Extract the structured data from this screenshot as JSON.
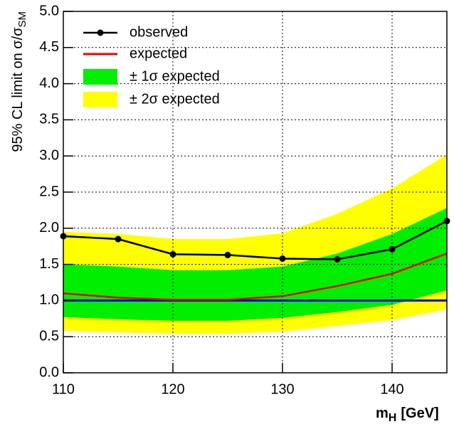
{
  "chart_data": {
    "type": "limit",
    "y_label": "95% CL limit on  σ/σ",
    "y_label_sub": "SM",
    "x_label": "m",
    "x_label_sub": "H",
    "x_label_unit": "[GeV]",
    "x": [
      110,
      115,
      120,
      125,
      130,
      135,
      140,
      145
    ],
    "xlim": [
      110,
      145
    ],
    "xticks": [
      110,
      120,
      130,
      140
    ],
    "ylim": [
      0,
      5
    ],
    "yticks": [
      {
        "value": 0,
        "label": "0.0"
      },
      {
        "value": 0.5,
        "label": "0.5"
      },
      {
        "value": 1,
        "label": "1.0"
      },
      {
        "value": 1.5,
        "label": "1.5"
      },
      {
        "value": 2,
        "label": "2.0"
      },
      {
        "value": 2.5,
        "label": "2.5"
      },
      {
        "value": 3,
        "label": "3.0"
      },
      {
        "value": 3.5,
        "label": "3.5"
      },
      {
        "value": 4,
        "label": "4.0"
      },
      {
        "value": 4.5,
        "label": "4.5"
      },
      {
        "value": 5,
        "label": "5.0"
      }
    ],
    "grid": true,
    "legend": "top-left",
    "bands": [
      {
        "name": "± 2σ expected",
        "color": "#ffff00",
        "lower": [
          0.58,
          0.56,
          0.54,
          0.54,
          0.57,
          0.65,
          0.73,
          0.88
        ],
        "upper": [
          1.95,
          1.92,
          1.85,
          1.85,
          1.93,
          2.2,
          2.55,
          3.02
        ]
      },
      {
        "name": "± 1σ expected",
        "color": "#00ee00",
        "lower": [
          0.77,
          0.74,
          0.72,
          0.72,
          0.76,
          0.84,
          0.94,
          1.14
        ],
        "upper": [
          1.5,
          1.47,
          1.42,
          1.42,
          1.47,
          1.65,
          1.92,
          2.28
        ]
      }
    ],
    "series": [
      {
        "name": "expected",
        "color": "#ee0000",
        "values": [
          1.1,
          1.04,
          1.01,
          1.01,
          1.06,
          1.2,
          1.37,
          1.65
        ]
      },
      {
        "name": "observed",
        "color": "#000000",
        "values": [
          1.89,
          1.85,
          1.64,
          1.63,
          1.58,
          1.57,
          1.71,
          2.1
        ],
        "markers": true
      }
    ],
    "reference_line": {
      "value": 1,
      "color": "#0000dd"
    }
  }
}
